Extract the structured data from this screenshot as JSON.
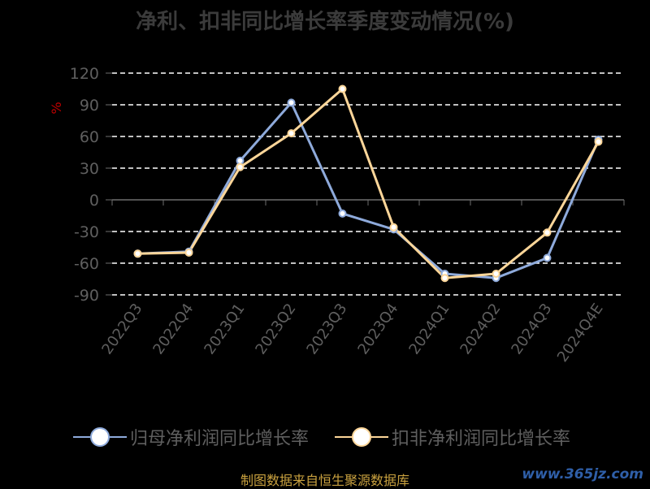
{
  "chart_data": {
    "type": "line",
    "title": "净利、扣非同比增长率季度变动情况(%)",
    "ylabel": "%",
    "categories": [
      "2022Q3",
      "2022Q4",
      "2023Q1",
      "2023Q2",
      "2023Q3",
      "2023Q4",
      "2024Q1",
      "2024Q2",
      "2024Q3",
      "2024Q4E"
    ],
    "yticks": [
      120,
      90,
      60,
      30,
      0,
      -30,
      -60,
      -90
    ],
    "ylim": [
      -90,
      120
    ],
    "grid": true,
    "legend_position": "bottom",
    "series": [
      {
        "name": "归母净利润同比增长率",
        "color": "#8eaadb",
        "values": [
          -51,
          -49,
          37,
          92,
          -13,
          -28,
          -70,
          -74,
          -55,
          57
        ]
      },
      {
        "name": "扣非净利润同比增长率",
        "color": "#fdd699",
        "values": [
          -51,
          -50,
          31,
          63,
          105,
          -26,
          -74,
          -70,
          -31,
          55
        ]
      }
    ]
  },
  "footer": {
    "source": "制图数据来自恒生聚源数据库",
    "watermark": "www.365jz.com"
  }
}
